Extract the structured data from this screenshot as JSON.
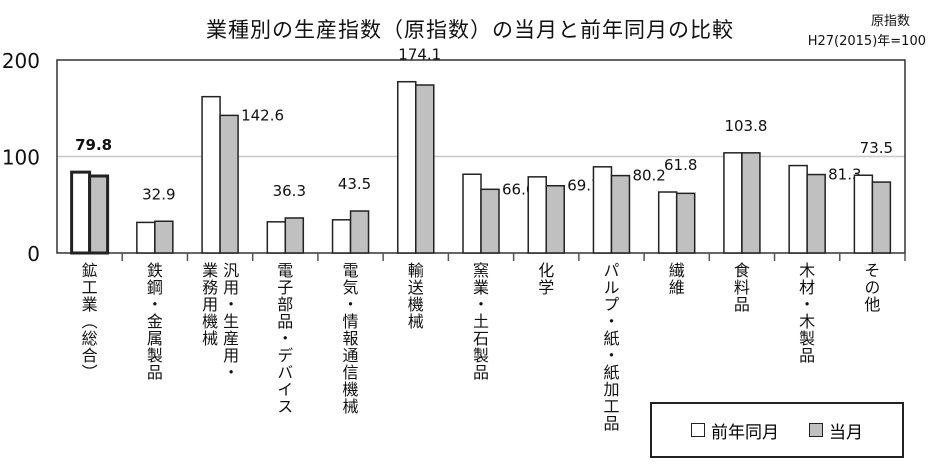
{
  "chart_data": {
    "type": "bar",
    "title": "業種別の生産指数（原指数）の当月と前年同月の比較",
    "note": [
      "原指数",
      "H27(2015)年=100"
    ],
    "categories": [
      "鉱工業（総合）",
      "鉄鋼・金属製品",
      "汎用・生産用・\n業務用機械",
      "電子部品・デバイス",
      "電気・情報通信機械",
      "輸送機械",
      "窯業・土石製品",
      "化学",
      "パルプ・紙・紙加工品",
      "繊維",
      "食料品",
      "木材・木製品",
      "その他"
    ],
    "series": [
      {
        "name": "前年同月",
        "color": "#ffffff",
        "values": [
          83.8,
          31.7,
          162.0,
          32.3,
          34.4,
          177.5,
          81.6,
          78.9,
          89.3,
          63.2,
          103.8,
          90.6,
          80.6
        ]
      },
      {
        "name": "当月",
        "color": "#c0c0c0",
        "values": [
          79.8,
          32.9,
          142.6,
          36.3,
          43.5,
          174.1,
          66.0,
          69.7,
          80.2,
          61.8,
          103.8,
          81.3,
          73.5
        ]
      }
    ],
    "data_labels": [
      "79.8",
      "32.9",
      "142.6",
      "36.3",
      "43.5",
      "174.1",
      "66.0",
      "69.7",
      "80.2",
      "61.8",
      "103.8",
      "81.3",
      "73.5"
    ],
    "yticks": [
      "0",
      "100",
      "200"
    ],
    "ylim": [
      0,
      200
    ],
    "grid": true,
    "legend": "bottom-right"
  }
}
